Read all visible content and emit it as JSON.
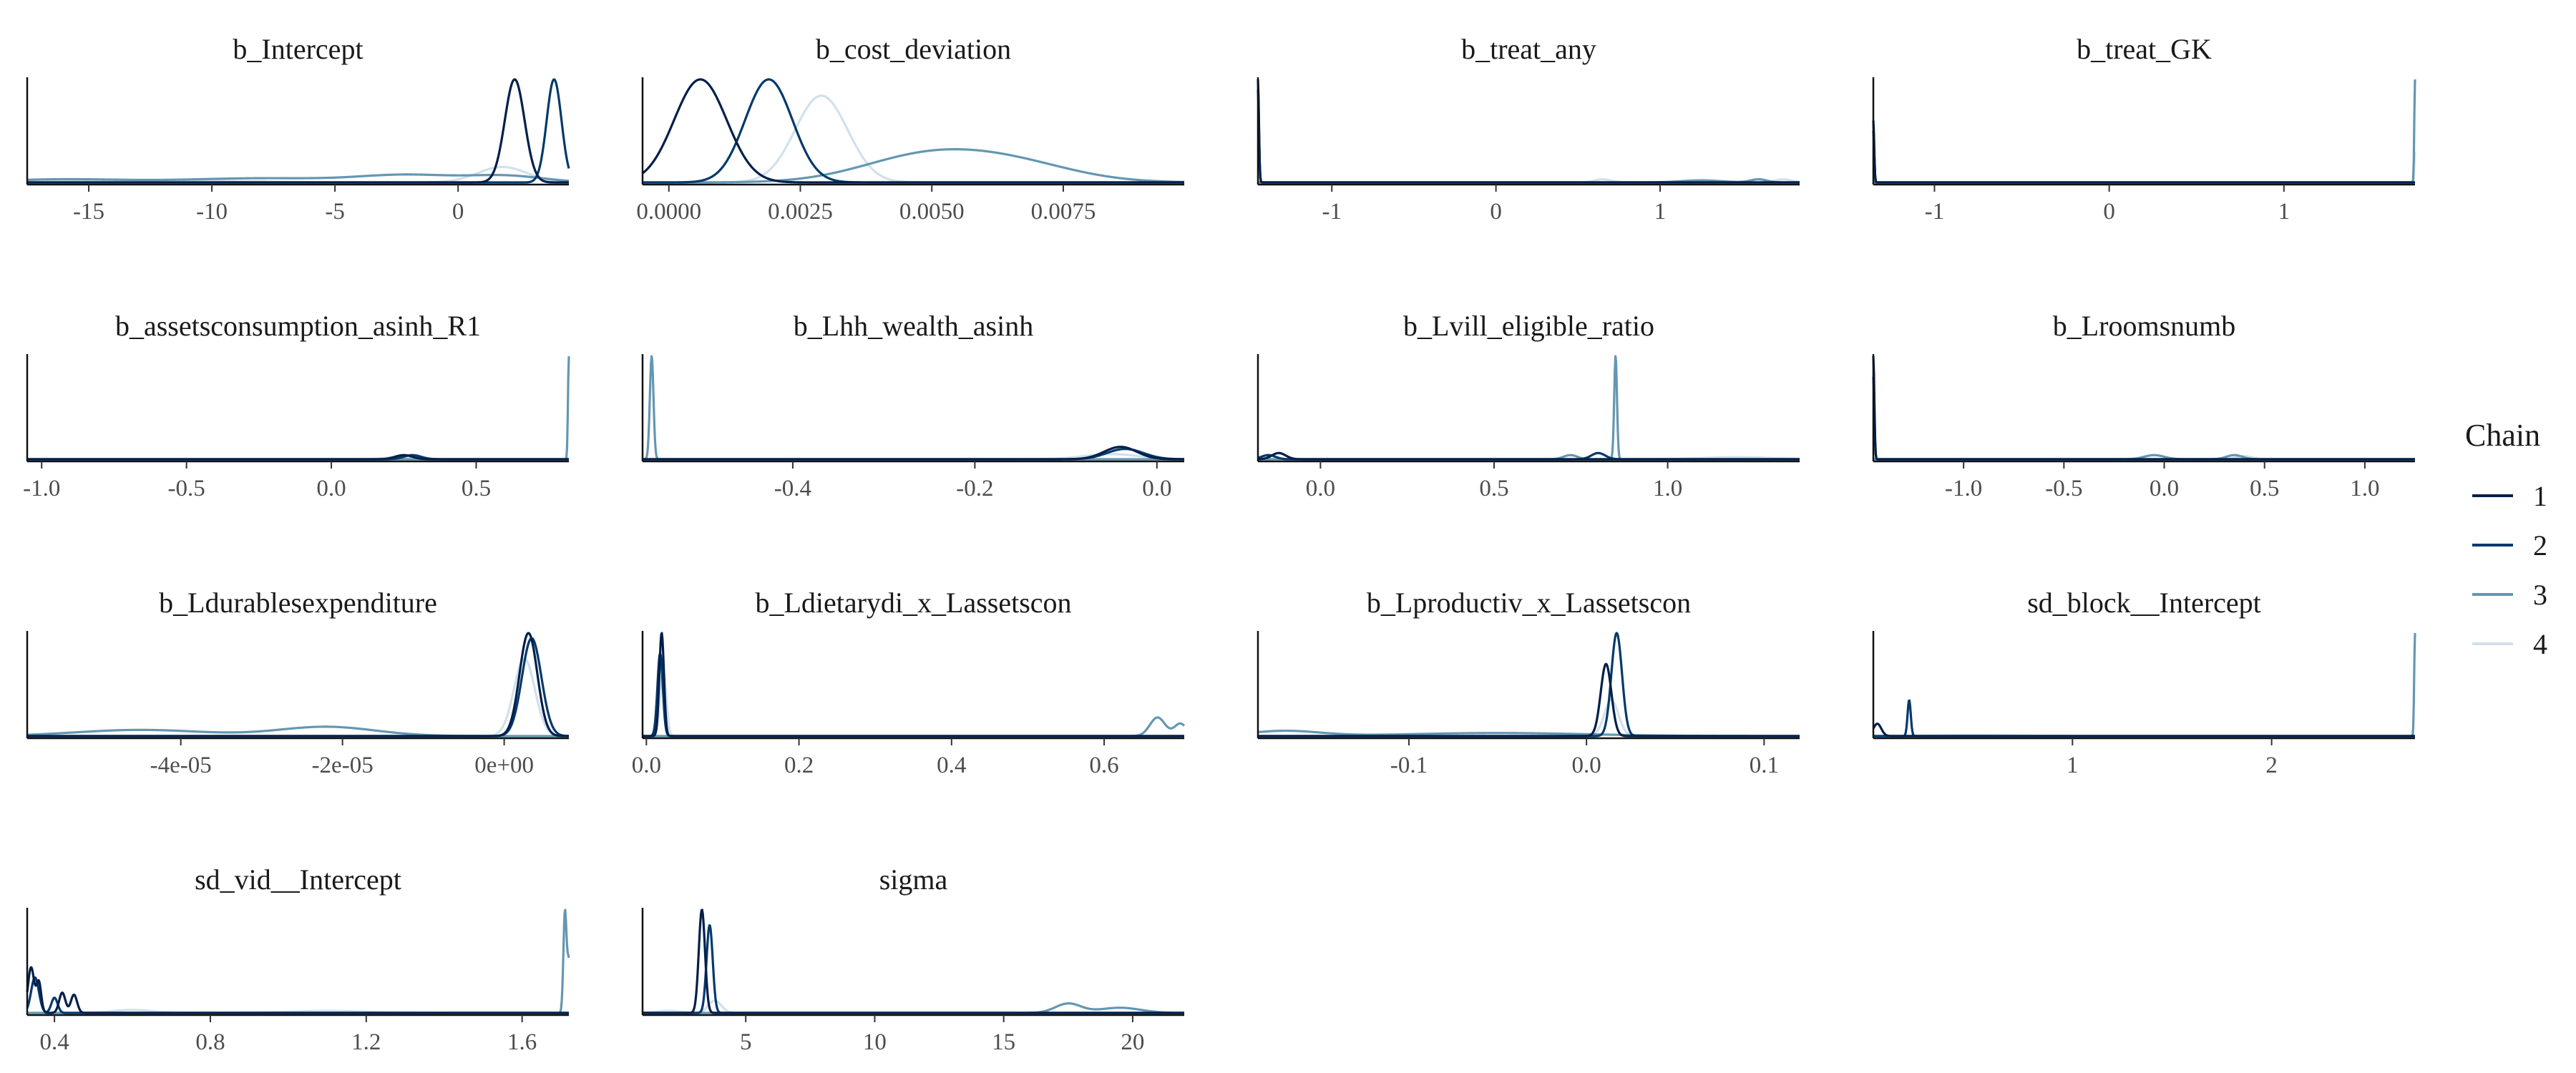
{
  "chart_data": {
    "type": "density-grid",
    "legend": {
      "title": "Chain",
      "placement": "right",
      "entries": [
        {
          "label": "1",
          "color": "#011f4b"
        },
        {
          "label": "2",
          "color": "#03396c"
        },
        {
          "label": "3",
          "color": "#6497b1"
        },
        {
          "label": "4",
          "color": "#d1e1ec"
        }
      ]
    },
    "panels": [
      {
        "title": "b_Intercept",
        "xlim": [
          -17.5,
          4.5
        ],
        "ticks": [
          {
            "v": -15,
            "l": "-15"
          },
          {
            "v": -10,
            "l": "-10"
          },
          {
            "v": -5,
            "l": "-5"
          },
          {
            "v": 0,
            "l": "0"
          }
        ],
        "series": [
          {
            "chain": 1,
            "peaks": [
              [
                2.3,
                0.4,
                1.0
              ]
            ]
          },
          {
            "chain": 2,
            "peaks": [
              [
                3.9,
                0.3,
                1.0
              ]
            ]
          },
          {
            "chain": 3,
            "peaks": [
              [
                -16,
                2.5,
                0.03
              ],
              [
                -8,
                3,
                0.04
              ],
              [
                -2,
                2,
                0.07
              ],
              [
                2,
                1.5,
                0.06
              ]
            ]
          },
          {
            "chain": 4,
            "peaks": [
              [
                -12,
                3,
                0.02
              ],
              [
                1.8,
                1.0,
                0.15
              ]
            ]
          }
        ]
      },
      {
        "title": "b_cost_deviation",
        "xlim": [
          -0.0005,
          0.0098
        ],
        "ticks": [
          {
            "v": 0,
            "l": "0.0000"
          },
          {
            "v": 0.0025,
            "l": "0.0025"
          },
          {
            "v": 0.005,
            "l": "0.0050"
          },
          {
            "v": 0.0075,
            "l": "0.0075"
          }
        ],
        "series": [
          {
            "chain": 1,
            "peaks": [
              [
                0.0006,
                0.0005,
                0.95
              ]
            ]
          },
          {
            "chain": 2,
            "peaks": [
              [
                0.0019,
                0.00045,
                0.95
              ]
            ]
          },
          {
            "chain": 3,
            "peaks": [
              [
                0.0048,
                0.0012,
                0.22
              ],
              [
                0.0065,
                0.0012,
                0.17
              ]
            ]
          },
          {
            "chain": 4,
            "peaks": [
              [
                0.0029,
                0.0005,
                0.8
              ]
            ]
          }
        ]
      },
      {
        "title": "b_treat_any",
        "xlim": [
          -1.45,
          1.85
        ],
        "ticks": [
          {
            "v": -1,
            "l": "-1"
          },
          {
            "v": 0,
            "l": "0"
          },
          {
            "v": 1,
            "l": "1"
          }
        ],
        "series": [
          {
            "chain": 1,
            "peaks": [
              [
                -1.45,
                0.006,
                1.0
              ]
            ]
          },
          {
            "chain": 2,
            "peaks": [
              [
                -1.45,
                0.006,
                0.9
              ]
            ]
          },
          {
            "chain": 3,
            "peaks": [
              [
                1.25,
                0.12,
                0.02
              ],
              [
                1.6,
                0.05,
                0.03
              ]
            ]
          },
          {
            "chain": 4,
            "peaks": [
              [
                0.65,
                0.05,
                0.03
              ],
              [
                1.75,
                0.05,
                0.03
              ]
            ]
          }
        ]
      },
      {
        "title": "b_treat_GK",
        "xlim": [
          -1.35,
          1.75
        ],
        "ticks": [
          {
            "v": -1,
            "l": "-1"
          },
          {
            "v": 0,
            "l": "0"
          },
          {
            "v": 1,
            "l": "1"
          }
        ],
        "series": [
          {
            "chain": 1,
            "peaks": [
              [
                -1.35,
                0.005,
                0.6
              ]
            ]
          },
          {
            "chain": 2,
            "peaks": [
              [
                -1.35,
                0.005,
                0.5
              ]
            ]
          },
          {
            "chain": 3,
            "peaks": [
              [
                1.75,
                0.004,
                1.0
              ]
            ]
          },
          {
            "chain": 4,
            "peaks": [
              [
                1.75,
                0.004,
                0.3
              ]
            ]
          }
        ]
      },
      {
        "title": "b_assetsconsumption_asinh_R1",
        "xlim": [
          -1.05,
          0.82
        ],
        "ticks": [
          {
            "v": -1,
            "l": "-1.0"
          },
          {
            "v": -0.5,
            "l": "-0.5"
          },
          {
            "v": 0,
            "l": "0.0"
          },
          {
            "v": 0.5,
            "l": "0.5"
          }
        ],
        "series": [
          {
            "chain": 1,
            "peaks": [
              [
                0.25,
                0.03,
                0.04
              ]
            ]
          },
          {
            "chain": 2,
            "peaks": [
              [
                0.28,
                0.03,
                0.04
              ]
            ]
          },
          {
            "chain": 3,
            "peaks": [
              [
                0.82,
                0.003,
                1.0
              ]
            ]
          },
          {
            "chain": 4,
            "peaks": [
              [
                0.22,
                0.04,
                0.02
              ]
            ]
          }
        ]
      },
      {
        "title": "b_Lhh_wealth_asinh",
        "xlim": [
          -0.565,
          0.03
        ],
        "ticks": [
          {
            "v": -0.4,
            "l": "-0.4"
          },
          {
            "v": -0.2,
            "l": "-0.2"
          },
          {
            "v": 0,
            "l": "0.0"
          }
        ],
        "series": [
          {
            "chain": 1,
            "peaks": [
              [
                -0.04,
                0.018,
                0.12
              ]
            ]
          },
          {
            "chain": 2,
            "peaks": [
              [
                -0.035,
                0.02,
                0.1
              ]
            ]
          },
          {
            "chain": 3,
            "peaks": [
              [
                -0.555,
                0.002,
                1.0
              ]
            ]
          },
          {
            "chain": 4,
            "peaks": [
              [
                -0.05,
                0.03,
                0.05
              ]
            ]
          }
        ]
      },
      {
        "title": "b_Lvill_eligible_ratio",
        "xlim": [
          -0.18,
          1.38
        ],
        "ticks": [
          {
            "v": 0,
            "l": "0.0"
          },
          {
            "v": 0.5,
            "l": "0.5"
          },
          {
            "v": 1,
            "l": "1.0"
          }
        ],
        "series": [
          {
            "chain": 1,
            "peaks": [
              [
                -0.12,
                0.02,
                0.06
              ]
            ]
          },
          {
            "chain": 2,
            "peaks": [
              [
                -0.15,
                0.02,
                0.04
              ],
              [
                0.8,
                0.02,
                0.06
              ]
            ]
          },
          {
            "chain": 3,
            "peaks": [
              [
                0.85,
                0.004,
                1.0
              ],
              [
                0.72,
                0.02,
                0.04
              ]
            ]
          },
          {
            "chain": 4,
            "peaks": [
              [
                1.2,
                0.1,
                0.02
              ]
            ]
          }
        ]
      },
      {
        "title": "b_Lroomsnumb",
        "xlim": [
          -1.45,
          1.25
        ],
        "ticks": [
          {
            "v": -1,
            "l": "-1.0"
          },
          {
            "v": -0.5,
            "l": "-0.5"
          },
          {
            "v": 0,
            "l": "0.0"
          },
          {
            "v": 0.5,
            "l": "0.5"
          },
          {
            "v": 1,
            "l": "1.0"
          }
        ],
        "series": [
          {
            "chain": 1,
            "peaks": [
              [
                -1.45,
                0.005,
                0.5
              ]
            ]
          },
          {
            "chain": 2,
            "peaks": [
              [
                -1.45,
                0.005,
                0.4
              ]
            ]
          },
          {
            "chain": 3,
            "peaks": [
              [
                -0.05,
                0.05,
                0.02
              ],
              [
                0.35,
                0.04,
                0.02
              ]
            ]
          },
          {
            "chain": 4,
            "peaks": [
              [
                0.4,
                0.04,
                0.015
              ]
            ]
          }
        ]
      },
      {
        "title": "b_Ldurablesexpenditure",
        "xlim": [
          -5.9e-05,
          8e-06
        ],
        "ticks": [
          {
            "v": -4e-05,
            "l": "-4e-05"
          },
          {
            "v": -2e-05,
            "l": "-2e-05"
          },
          {
            "v": 0,
            "l": "0e+00"
          }
        ],
        "series": [
          {
            "chain": 1,
            "peaks": [
              [
                3e-06,
                1.1e-06,
                1.0
              ]
            ]
          },
          {
            "chain": 2,
            "peaks": [
              [
                3.4e-06,
                1.2e-06,
                0.95
              ]
            ]
          },
          {
            "chain": 3,
            "peaks": [
              [
                -4.5e-05,
                8e-06,
                0.06
              ],
              [
                -2.2e-05,
                6e-06,
                0.09
              ]
            ]
          },
          {
            "chain": 4,
            "peaks": [
              [
                2.5e-06,
                1.3e-06,
                0.75
              ]
            ]
          }
        ]
      },
      {
        "title": "b_Ldietarydi_x_Lassetscon",
        "xlim": [
          -0.005,
          0.705
        ],
        "ticks": [
          {
            "v": 0,
            "l": "0.0"
          },
          {
            "v": 0.2,
            "l": "0.2"
          },
          {
            "v": 0.4,
            "l": "0.4"
          },
          {
            "v": 0.6,
            "l": "0.6"
          }
        ],
        "series": [
          {
            "chain": 1,
            "peaks": [
              [
                0.02,
                0.003,
                1.0
              ]
            ]
          },
          {
            "chain": 2,
            "peaks": [
              [
                0.018,
                0.0035,
                0.8
              ]
            ]
          },
          {
            "chain": 3,
            "peaks": [
              [
                0.67,
                0.01,
                0.18
              ],
              [
                0.7,
                0.008,
                0.12
              ]
            ]
          },
          {
            "chain": 4,
            "peaks": [
              [
                0.022,
                0.004,
                0.65
              ]
            ]
          }
        ]
      },
      {
        "title": "b_Lproductiv_x_Lassetscon",
        "xlim": [
          -0.185,
          0.12
        ],
        "ticks": [
          {
            "v": -0.1,
            "l": "-0.1"
          },
          {
            "v": 0,
            "l": "0.0"
          },
          {
            "v": 0.1,
            "l": "0.1"
          }
        ],
        "series": [
          {
            "chain": 1,
            "peaks": [
              [
                0.011,
                0.003,
                0.7
              ]
            ]
          },
          {
            "chain": 2,
            "peaks": [
              [
                0.017,
                0.003,
                1.0
              ]
            ]
          },
          {
            "chain": 3,
            "peaks": [
              [
                -0.17,
                0.02,
                0.05
              ],
              [
                -0.05,
                0.05,
                0.03
              ]
            ]
          },
          {
            "chain": 4,
            "peaks": [
              [
                0.014,
                0.004,
                0.35
              ]
            ]
          }
        ]
      },
      {
        "title": "sd_block__Intercept",
        "xlim": [
          0,
          2.72
        ],
        "ticks": [
          {
            "v": 1,
            "l": "1"
          },
          {
            "v": 2,
            "l": "2"
          }
        ],
        "series": [
          {
            "chain": 1,
            "peaks": [
              [
                0.02,
                0.02,
                0.12
              ]
            ]
          },
          {
            "chain": 2,
            "peaks": [
              [
                0.18,
                0.008,
                0.35
              ]
            ]
          },
          {
            "chain": 3,
            "peaks": [
              [
                2.72,
                0.004,
                1.0
              ]
            ]
          },
          {
            "chain": 4,
            "peaks": [
              [
                0.5,
                0.2,
                0.01
              ]
            ]
          }
        ]
      },
      {
        "title": "sd_vid__Intercept",
        "xlim": [
          0.33,
          1.72
        ],
        "ticks": [
          {
            "v": 0.4,
            "l": "0.4"
          },
          {
            "v": 0.8,
            "l": "0.8"
          },
          {
            "v": 1.2,
            "l": "1.2"
          },
          {
            "v": 1.6,
            "l": "1.6"
          }
        ],
        "series": [
          {
            "chain": 1,
            "peaks": [
              [
                0.34,
                0.008,
                0.45
              ],
              [
                0.36,
                0.006,
                0.3
              ],
              [
                0.42,
                0.008,
                0.2
              ],
              [
                0.45,
                0.008,
                0.18
              ]
            ]
          },
          {
            "chain": 2,
            "peaks": [
              [
                0.35,
                0.01,
                0.35
              ],
              [
                0.4,
                0.008,
                0.15
              ]
            ]
          },
          {
            "chain": 3,
            "peaks": [
              [
                1.71,
                0.004,
                1.0
              ],
              [
                1.72,
                0.004,
                0.5
              ]
            ]
          },
          {
            "chain": 4,
            "peaks": [
              [
                0.6,
                0.05,
                0.03
              ],
              [
                1.1,
                0.1,
                0.02
              ]
            ]
          }
        ]
      },
      {
        "title": "sigma",
        "xlim": [
          1.0,
          22.0
        ],
        "ticks": [
          {
            "v": 5,
            "l": "5"
          },
          {
            "v": 10,
            "l": "10"
          },
          {
            "v": 15,
            "l": "15"
          },
          {
            "v": 20,
            "l": "20"
          }
        ],
        "series": [
          {
            "chain": 1,
            "peaks": [
              [
                3.3,
                0.12,
                1.0
              ]
            ]
          },
          {
            "chain": 2,
            "peaks": [
              [
                3.6,
                0.12,
                0.85
              ]
            ]
          },
          {
            "chain": 3,
            "peaks": [
              [
                17.5,
                0.5,
                0.09
              ],
              [
                19.5,
                0.8,
                0.05
              ]
            ]
          },
          {
            "chain": 4,
            "peaks": [
              [
                3.8,
                0.25,
                0.12
              ],
              [
                2,
                0.5,
                0.02
              ]
            ]
          }
        ]
      }
    ]
  }
}
